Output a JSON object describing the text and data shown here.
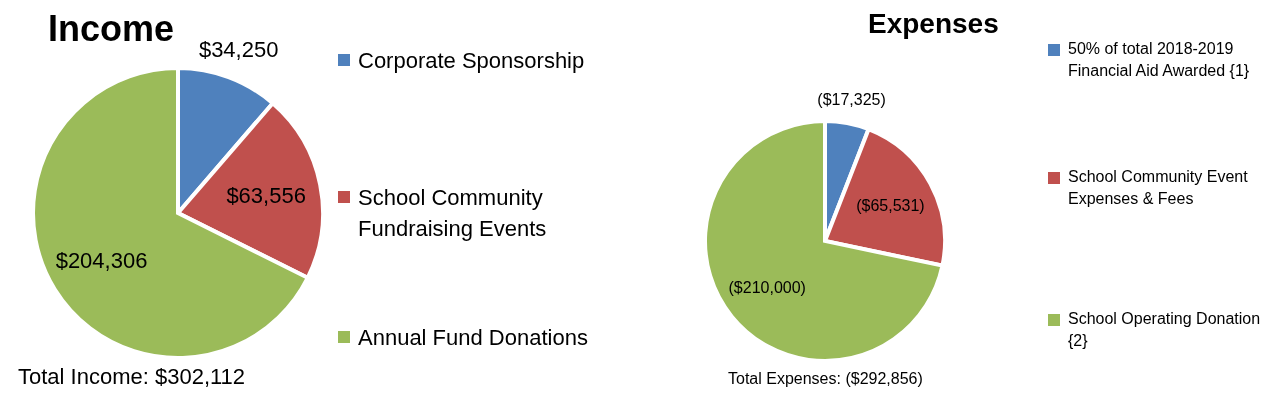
{
  "chart_data": [
    {
      "type": "pie",
      "title": "Income",
      "categories": [
        "Corporate Sponsorship",
        "School Community Fundraising Events",
        "Annual Fund Donations"
      ],
      "values": [
        34250,
        63556,
        204306
      ],
      "colors": [
        "#4f81bd",
        "#c0504d",
        "#9bbb59"
      ],
      "value_labels": [
        "$34,250",
        "$63,556",
        "$204,306"
      ],
      "legend": "right",
      "annotations": [
        "Total Income: $302,112"
      ]
    },
    {
      "type": "pie",
      "title": "Expenses",
      "categories": [
        "50% of total 2018-2019 Financial Aid Awarded {1}",
        "School Community Event Expenses & Fees",
        "School Operating Donation {2}"
      ],
      "values": [
        17325,
        65531,
        210000
      ],
      "colors": [
        "#4f81bd",
        "#c0504d",
        "#9bbb59"
      ],
      "value_labels": [
        "($17,325)",
        "($65,531)",
        "($210,000)"
      ],
      "legend": "right",
      "annotations": [
        "Total Expenses: ($292,856)"
      ]
    }
  ]
}
